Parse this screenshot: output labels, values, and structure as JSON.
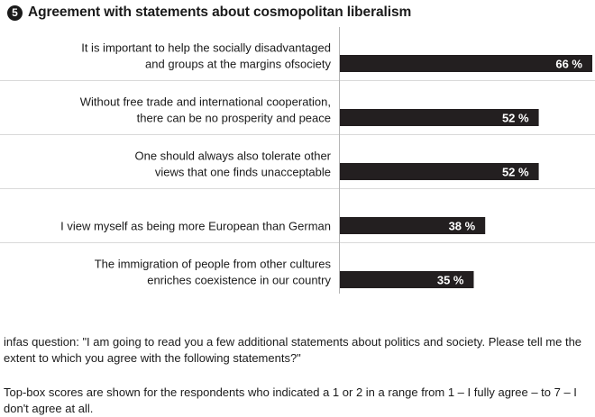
{
  "header": {
    "badge": "5",
    "title": "Agreement with statements about cosmopolitan liberalism"
  },
  "chart_data": {
    "type": "bar",
    "orientation": "horizontal",
    "categories": [
      [
        "It is important to help the socially disadvantaged",
        "and groups at the margins ofsociety"
      ],
      [
        "Without free trade and international cooperation,",
        "there can be no prosperity and peace"
      ],
      [
        "One should always also tolerate other",
        "views that one finds unacceptable"
      ],
      [
        "I view myself as being more European than German"
      ],
      [
        "The immigration of people from other cultures",
        "enriches coexistence in our country"
      ]
    ],
    "values": [
      66,
      52,
      52,
      38,
      35
    ],
    "value_labels": [
      "66 %",
      "52 %",
      "52 %",
      "38 %",
      "35 %"
    ],
    "unit": "%",
    "xlim": [
      0,
      66
    ],
    "bar_color": "#231f20",
    "grid": false
  },
  "notes": {
    "question": "infas question: \"I am going to read you a few additional statements about politics and society. Please tell me the extent to which you  agree with the following statements?\"",
    "scores": "Top-box scores are shown for the respondents  who indicated a 1 or 2 in a range from 1 – I fully agree – to 7 – I don't agree at all."
  }
}
